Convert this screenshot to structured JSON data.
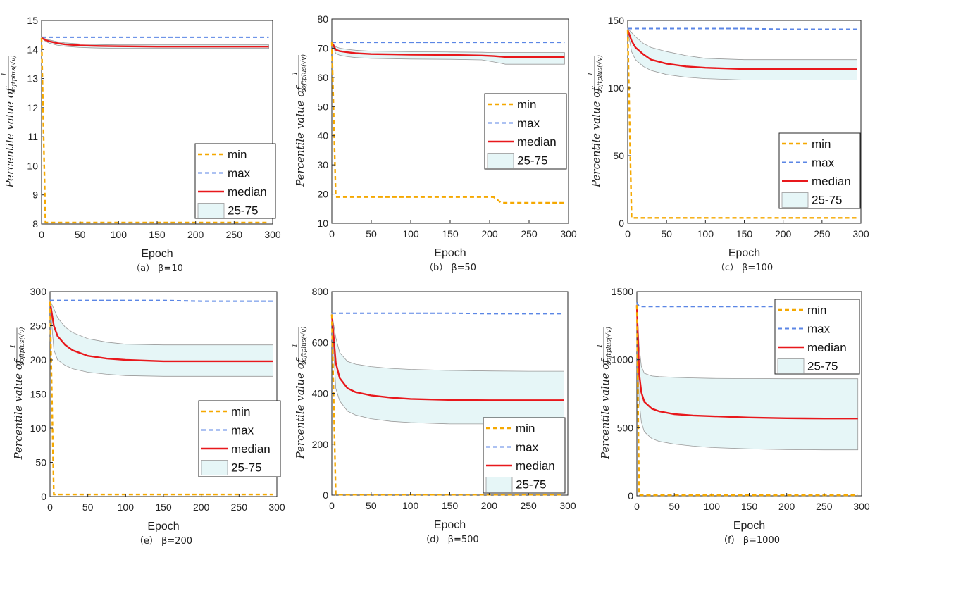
{
  "colors": {
    "min": "#f5a800",
    "max": "#5b86e5",
    "median": "#e8181c",
    "band": "#e6f6f7",
    "band_edge": "#999999"
  },
  "chart_data": [
    {
      "type": "line",
      "title": "",
      "xlabel": "Epoch",
      "ylabel": "Percentile value of",
      "ylabel_fn": "1/softplus(√v)",
      "ylabel_fn_num": "1",
      "ylabel_fn_den": "softplus(√v)",
      "caption": "（a） β=10",
      "xlim": [
        0,
        300
      ],
      "ylim": [
        8,
        15
      ],
      "xticks": [
        0,
        50,
        100,
        150,
        200,
        250,
        300
      ],
      "xtick_labels": [
        "0",
        "50",
        "100",
        "150",
        "200",
        "250",
        "300"
      ],
      "yticks": [
        8,
        9,
        10,
        11,
        12,
        13,
        14,
        15
      ],
      "ytick_labels": [
        "8",
        "9",
        "10",
        "11",
        "12",
        "13",
        "14",
        "15"
      ],
      "legend": [
        "min",
        "max",
        "median",
        "25-75"
      ],
      "legend_position": "lower-right",
      "x": [
        0,
        5,
        10,
        20,
        30,
        50,
        75,
        100,
        150,
        200,
        250,
        295
      ],
      "series": [
        {
          "name": "min",
          "values": [
            14.4,
            8.05,
            8.05,
            8.05,
            8.05,
            8.05,
            8.05,
            8.05,
            8.05,
            8.05,
            8.05,
            8.05
          ]
        },
        {
          "name": "max",
          "values": [
            14.42,
            14.42,
            14.42,
            14.42,
            14.42,
            14.42,
            14.42,
            14.42,
            14.42,
            14.42,
            14.42,
            14.42
          ]
        },
        {
          "name": "median",
          "values": [
            14.4,
            14.33,
            14.28,
            14.22,
            14.18,
            14.14,
            14.12,
            14.11,
            14.1,
            14.1,
            14.1,
            14.1
          ]
        },
        {
          "name": "25-75 upper",
          "values": [
            14.42,
            14.37,
            14.33,
            14.27,
            14.23,
            14.19,
            14.17,
            14.16,
            14.16,
            14.16,
            14.16,
            14.16
          ]
        },
        {
          "name": "25-75 lower",
          "values": [
            14.4,
            14.28,
            14.22,
            14.15,
            14.11,
            14.07,
            14.05,
            14.04,
            14.04,
            14.04,
            14.04,
            14.04
          ]
        }
      ]
    },
    {
      "type": "line",
      "title": "",
      "xlabel": "Epoch",
      "ylabel": "Percentile value of",
      "ylabel_fn": "1/softplus(√v)",
      "ylabel_fn_num": "1",
      "ylabel_fn_den": "softplus(√v)",
      "caption": "（b） β=50",
      "xlim": [
        0,
        300
      ],
      "ylim": [
        10,
        80
      ],
      "xticks": [
        0,
        50,
        100,
        150,
        200,
        250,
        300
      ],
      "xtick_labels": [
        "0",
        "50",
        "100",
        "150",
        "200",
        "250",
        "300"
      ],
      "yticks": [
        10,
        20,
        30,
        40,
        50,
        60,
        70,
        80
      ],
      "ytick_labels": [
        "10",
        "20",
        "30",
        "40",
        "50",
        "60",
        "70",
        "80"
      ],
      "legend": [
        "min",
        "max",
        "median",
        "25-75"
      ],
      "legend_position": "center-right",
      "x": [
        0,
        5,
        10,
        20,
        30,
        50,
        75,
        100,
        150,
        190,
        205,
        215,
        220,
        250,
        295
      ],
      "series": [
        {
          "name": "min",
          "values": [
            72,
            19,
            19,
            19,
            19,
            19,
            19,
            19,
            19,
            19,
            19,
            17,
            17,
            17,
            17
          ]
        },
        {
          "name": "max",
          "values": [
            72,
            72,
            72,
            72,
            72,
            72,
            72,
            72,
            72,
            72,
            72,
            72,
            72,
            72,
            72
          ]
        },
        {
          "name": "median",
          "values": [
            72,
            69.5,
            69,
            68.6,
            68.3,
            68,
            67.9,
            67.8,
            67.7,
            67.5,
            67.3,
            67.1,
            67,
            67,
            67
          ]
        },
        {
          "name": "25-75 upper",
          "values": [
            72,
            70.5,
            70,
            69.6,
            69.3,
            69,
            68.9,
            68.8,
            68.7,
            68.6,
            68.5,
            68.5,
            68.5,
            68.5,
            68.5
          ]
        },
        {
          "name": "25-75 lower",
          "values": [
            72,
            68.2,
            67.6,
            67.1,
            66.8,
            66.5,
            66.4,
            66.3,
            66.2,
            66,
            65.3,
            64.8,
            64.5,
            64.5,
            64.5
          ]
        }
      ]
    },
    {
      "type": "line",
      "title": "",
      "xlabel": "Epoch",
      "ylabel": "Percentile value of",
      "ylabel_fn": "1/softplus(√v)",
      "ylabel_fn_num": "1",
      "ylabel_fn_den": "softplus(√v)",
      "caption": "（c） β=100",
      "xlim": [
        0,
        300
      ],
      "ylim": [
        0,
        150
      ],
      "xticks": [
        0,
        50,
        100,
        150,
        200,
        250,
        300
      ],
      "xtick_labels": [
        "0",
        "50",
        "100",
        "150",
        "200",
        "250",
        "300"
      ],
      "yticks": [
        0,
        50,
        100,
        150
      ],
      "ytick_labels": [
        "0",
        "50",
        "100",
        "150"
      ],
      "legend": [
        "min",
        "max",
        "median",
        "25-75"
      ],
      "legend_position": "lower-right",
      "x": [
        0,
        5,
        10,
        20,
        30,
        50,
        75,
        100,
        150,
        200,
        250,
        295
      ],
      "series": [
        {
          "name": "min",
          "values": [
            143,
            4,
            4,
            4,
            4,
            4,
            4,
            4,
            4,
            4,
            4,
            4
          ]
        },
        {
          "name": "max",
          "values": [
            144,
            144,
            144,
            144,
            144,
            144,
            144,
            144,
            144,
            143.5,
            143.5,
            143.5
          ]
        },
        {
          "name": "median",
          "values": [
            143,
            135,
            130,
            125,
            121,
            118,
            116,
            115,
            114,
            114,
            114,
            114
          ]
        },
        {
          "name": "25-75 upper",
          "values": [
            144,
            141,
            138,
            133,
            130,
            127,
            124,
            122,
            121,
            121,
            121,
            121
          ]
        },
        {
          "name": "25-75 lower",
          "values": [
            143,
            127,
            121,
            116,
            113,
            110,
            108,
            107,
            106,
            106,
            106,
            106
          ]
        }
      ]
    },
    {
      "type": "line",
      "title": "",
      "xlabel": "Epoch",
      "ylabel": "Percentile value of",
      "ylabel_fn": "1/softplus(√v)",
      "ylabel_fn_num": "1",
      "ylabel_fn_den": "softplus(√v)",
      "caption": "（e） β=200",
      "xlim": [
        0,
        300
      ],
      "ylim": [
        0,
        300
      ],
      "xticks": [
        0,
        50,
        100,
        150,
        200,
        250,
        300
      ],
      "xtick_labels": [
        "0",
        "50",
        "100",
        "150",
        "200",
        "250",
        "300"
      ],
      "yticks": [
        0,
        50,
        100,
        150,
        200,
        250,
        300
      ],
      "ytick_labels": [
        "0",
        "50",
        "100",
        "150",
        "200",
        "250",
        "300"
      ],
      "legend": [
        "min",
        "max",
        "median",
        "25-75"
      ],
      "legend_position": "lower-right",
      "x": [
        0,
        5,
        10,
        20,
        30,
        50,
        75,
        100,
        150,
        200,
        250,
        295
      ],
      "series": [
        {
          "name": "min",
          "values": [
            285,
            3,
            3,
            3,
            3,
            3,
            3,
            3,
            3,
            3,
            3,
            3
          ]
        },
        {
          "name": "max",
          "values": [
            287,
            287,
            287,
            287,
            287,
            287,
            287,
            287,
            287,
            286,
            286,
            286
          ]
        },
        {
          "name": "median",
          "values": [
            285,
            250,
            235,
            222,
            214,
            206,
            202,
            200,
            198,
            198,
            198,
            198
          ]
        },
        {
          "name": "25-75 upper",
          "values": [
            287,
            275,
            262,
            248,
            240,
            231,
            226,
            223,
            222,
            222,
            222,
            222
          ]
        },
        {
          "name": "25-75 lower",
          "values": [
            285,
            215,
            200,
            192,
            187,
            182,
            179,
            177,
            176,
            176,
            176,
            176
          ]
        }
      ]
    },
    {
      "type": "line",
      "title": "",
      "xlabel": "Epoch",
      "ylabel": "Percentile value of",
      "ylabel_fn": "1/softplus(√v)",
      "ylabel_fn_num": "1",
      "ylabel_fn_den": "softplus(√v)",
      "caption": "（d） β=500",
      "xlim": [
        0,
        300
      ],
      "ylim": [
        0,
        800
      ],
      "xticks": [
        0,
        50,
        100,
        150,
        200,
        250,
        300
      ],
      "xtick_labels": [
        "0",
        "50",
        "100",
        "150",
        "200",
        "250",
        "300"
      ],
      "yticks": [
        0,
        200,
        400,
        600,
        800
      ],
      "ytick_labels": [
        "0",
        "200",
        "400",
        "600",
        "800"
      ],
      "legend": [
        "min",
        "max",
        "median",
        "25-75"
      ],
      "legend_position": "lower-right",
      "x": [
        0,
        5,
        10,
        20,
        30,
        50,
        75,
        100,
        150,
        200,
        250,
        295
      ],
      "series": [
        {
          "name": "min",
          "values": [
            710,
            2,
            2,
            2,
            2,
            2,
            2,
            2,
            2,
            2,
            2,
            2
          ]
        },
        {
          "name": "max",
          "values": [
            715,
            715,
            715,
            715,
            715,
            715,
            715,
            715,
            715,
            713,
            713,
            713
          ]
        },
        {
          "name": "median",
          "values": [
            710,
            520,
            460,
            420,
            405,
            392,
            383,
            378,
            374,
            373,
            373,
            373
          ]
        },
        {
          "name": "25-75 upper",
          "values": [
            715,
            620,
            560,
            525,
            515,
            505,
            498,
            494,
            490,
            488,
            487,
            487
          ]
        },
        {
          "name": "25-75 lower",
          "values": [
            710,
            420,
            370,
            330,
            315,
            300,
            290,
            285,
            280,
            280,
            280,
            280
          ]
        }
      ]
    },
    {
      "type": "line",
      "title": "",
      "xlabel": "Epoch",
      "ylabel": "Percentile value of",
      "ylabel_fn": "1/softplus(√v)",
      "ylabel_fn_num": "1",
      "ylabel_fn_den": "softplus(√v)",
      "caption": "（f） β=1000",
      "xlim": [
        0,
        300
      ],
      "ylim": [
        0,
        1500
      ],
      "xticks": [
        0,
        50,
        100,
        150,
        200,
        250,
        300
      ],
      "xtick_labels": [
        "0",
        "50",
        "100",
        "150",
        "200",
        "250",
        "300"
      ],
      "yticks": [
        0,
        500,
        1000,
        1500
      ],
      "ytick_labels": [
        "0",
        "500",
        "1000",
        "1500"
      ],
      "legend": [
        "min",
        "max",
        "median",
        "25-75"
      ],
      "legend_position": "upper-right",
      "x": [
        0,
        3,
        6,
        10,
        20,
        30,
        50,
        75,
        100,
        150,
        200,
        250,
        295
      ],
      "series": [
        {
          "name": "min",
          "values": [
            1400,
            5,
            5,
            5,
            5,
            5,
            5,
            5,
            5,
            5,
            5,
            5,
            5
          ]
        },
        {
          "name": "max",
          "values": [
            1420,
            1390,
            1390,
            1390,
            1390,
            1390,
            1390,
            1390,
            1390,
            1390,
            1390,
            1390,
            1390
          ]
        },
        {
          "name": "median",
          "values": [
            1400,
            900,
            760,
            690,
            640,
            620,
            600,
            590,
            585,
            575,
            570,
            568,
            568
          ]
        },
        {
          "name": "25-75 upper",
          "values": [
            1420,
            1100,
            950,
            900,
            880,
            875,
            870,
            866,
            863,
            861,
            860,
            860,
            860
          ]
        },
        {
          "name": "25-75 lower",
          "values": [
            1400,
            700,
            540,
            470,
            420,
            400,
            380,
            365,
            355,
            345,
            340,
            338,
            338
          ]
        }
      ]
    }
  ]
}
